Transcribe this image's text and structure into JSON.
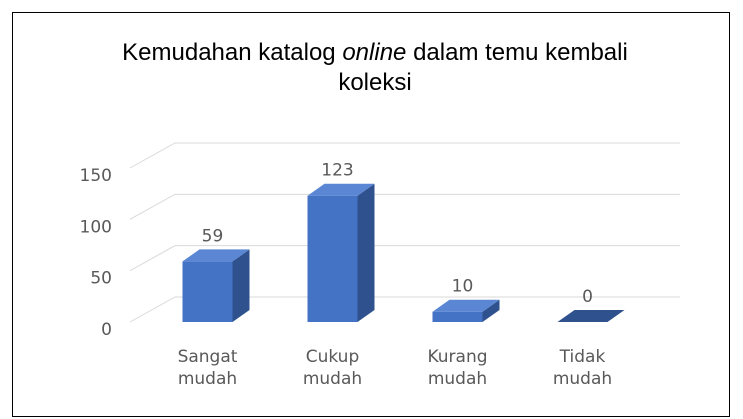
{
  "chart_data": {
    "type": "bar3d",
    "title": [
      "Kemudahan katalog",
      "online",
      "dalam temu kembali koleksi"
    ],
    "title_italic": [
      false,
      true,
      false
    ],
    "categories": [
      "Sangat mudah",
      "Cukup mudah",
      "Kurang mudah",
      "Tidak mudah"
    ],
    "values": [
      59,
      123,
      10,
      0
    ],
    "color": "#4472c4",
    "side_color": "#2f528f",
    "top_color": "#5a86d4",
    "ylim": [
      0,
      150
    ],
    "yticks": [
      0,
      50,
      100,
      150
    ],
    "grid": true
  }
}
